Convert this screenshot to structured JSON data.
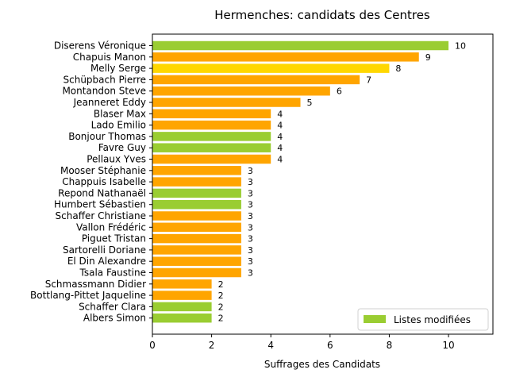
{
  "chart_data": {
    "type": "bar",
    "orientation": "horizontal",
    "title": "Hermenches: candidats des Centres",
    "xlabel": "Suffrages des Candidats",
    "ylabel": "",
    "xlim": [
      0,
      11.5
    ],
    "xticks": [
      0,
      2,
      4,
      6,
      8,
      10
    ],
    "grid": false,
    "legend": {
      "label": "Listes modifiées",
      "color": "#9acd32",
      "placement": "bottom-right"
    },
    "colors": {
      "orange": "#ffa500",
      "yellow": "#ffd700",
      "green": "#9acd32"
    },
    "bars": [
      {
        "name": "Diserens Véronique",
        "value": 10,
        "color": "green"
      },
      {
        "name": "Chapuis Manon",
        "value": 9,
        "color": "orange"
      },
      {
        "name": "Melly Serge",
        "value": 8,
        "color": "yellow"
      },
      {
        "name": "Schüpbach Pierre",
        "value": 7,
        "color": "orange"
      },
      {
        "name": "Montandon Steve",
        "value": 6,
        "color": "orange"
      },
      {
        "name": "Jeanneret Eddy",
        "value": 5,
        "color": "orange"
      },
      {
        "name": "Blaser Max",
        "value": 4,
        "color": "orange"
      },
      {
        "name": "Lado Emilio",
        "value": 4,
        "color": "orange"
      },
      {
        "name": "Bonjour Thomas",
        "value": 4,
        "color": "green"
      },
      {
        "name": "Favre Guy",
        "value": 4,
        "color": "green"
      },
      {
        "name": "Pellaux Yves",
        "value": 4,
        "color": "orange"
      },
      {
        "name": "Mooser Stéphanie",
        "value": 3,
        "color": "orange"
      },
      {
        "name": "Chappuis Isabelle",
        "value": 3,
        "color": "orange"
      },
      {
        "name": "Repond Nathanaël",
        "value": 3,
        "color": "green"
      },
      {
        "name": "Humbert Sébastien",
        "value": 3,
        "color": "green"
      },
      {
        "name": "Schaffer Christiane",
        "value": 3,
        "color": "orange"
      },
      {
        "name": "Vallon Frédéric",
        "value": 3,
        "color": "orange"
      },
      {
        "name": "Piguet Tristan",
        "value": 3,
        "color": "orange"
      },
      {
        "name": "Sartorelli Doriane",
        "value": 3,
        "color": "orange"
      },
      {
        "name": "El Din Alexandre",
        "value": 3,
        "color": "orange"
      },
      {
        "name": "Tsala Faustine",
        "value": 3,
        "color": "orange"
      },
      {
        "name": "Schmassmann Didier",
        "value": 2,
        "color": "orange"
      },
      {
        "name": "Bottlang-Pittet Jaqueline",
        "value": 2,
        "color": "orange"
      },
      {
        "name": "Schaffer Clara",
        "value": 2,
        "color": "green"
      },
      {
        "name": "Albers Simon",
        "value": 2,
        "color": "green"
      }
    ]
  }
}
